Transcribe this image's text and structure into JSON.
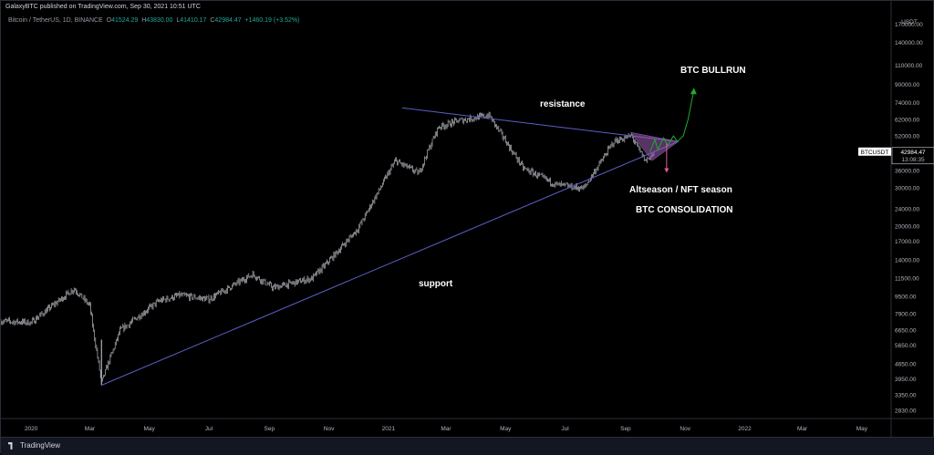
{
  "header": {
    "published": "GalaxyBTC published on TradingView.com, Sep 30, 2021 10:51 UTC",
    "symbol": "Bitcoin / TetherUS, 1D, BINANCE",
    "o_label": "O",
    "o": "41524.29",
    "h_label": "H",
    "h": "43830.00",
    "l_label": "L",
    "l": "41410.17",
    "c_label": "C",
    "c": "42984.47",
    "change": "+1460.19 (+3.52%)"
  },
  "price_axis": {
    "unit": "USDT",
    "labels": [
      "170000.00",
      "140000.00",
      "110000.00",
      "90000.00",
      "74000.00",
      "62000.00",
      "52000.00",
      "36000.00",
      "30000.00",
      "24000.00",
      "20000.00",
      "17000.00",
      "14000.00",
      "11500.00",
      "9500.00",
      "7900.00",
      "6650.00",
      "5650.00",
      "4650.00",
      "3950.00",
      "3350.00",
      "2830.00"
    ],
    "symbol_tag": "BTCUSDT",
    "last_price": "42984.47",
    "countdown": "13:08:35"
  },
  "time_axis": {
    "labels": [
      "2020",
      "Mar",
      "May",
      "Jul",
      "Sep",
      "Nov",
      "2021",
      "Mar",
      "May",
      "Jul",
      "Sep",
      "Nov",
      "2022",
      "Mar",
      "May"
    ]
  },
  "annotations": {
    "resistance": "resistance",
    "support": "support",
    "bullrun": "BTC BULLRUN",
    "altseason": "Altseason / NFT season",
    "consolidation": "BTC CONSOLIDATION"
  },
  "footer": {
    "brand": "TradingView"
  },
  "colors": {
    "background": "#000000",
    "candle": "#d1d4dc",
    "trendline": "#5b5fc7",
    "triangle_fill": "#9c5fb5",
    "bullrun_arrow": "#1faa2e",
    "down_arrow": "#e05a9a",
    "legend_value": "#26a69a"
  },
  "chart_data": {
    "type": "candlestick",
    "title": "Bitcoin / TetherUS, 1D, BINANCE",
    "scale": "log",
    "ylim": [
      2600,
      190000
    ],
    "xlim": [
      "2019-12-01",
      "2022-05-31"
    ],
    "series": [
      {
        "name": "BTCUSDT",
        "kind": "close_path_approx",
        "x": [
          "2019-12-01",
          "2020-01-01",
          "2020-02-14",
          "2020-03-01",
          "2020-03-13",
          "2020-04-01",
          "2020-05-10",
          "2020-06-01",
          "2020-07-01",
          "2020-08-15",
          "2020-09-05",
          "2020-10-15",
          "2020-11-01",
          "2020-12-01",
          "2021-01-08",
          "2021-02-01",
          "2021-02-21",
          "2021-03-13",
          "2021-04-14",
          "2021-05-19",
          "2021-06-22",
          "2021-07-20",
          "2021-08-20",
          "2021-09-07",
          "2021-09-21",
          "2021-09-30"
        ],
        "y": [
          7300,
          7200,
          10300,
          8600,
          3800,
          6600,
          9000,
          9600,
          9200,
          12000,
          10400,
          11500,
          13800,
          19500,
          40000,
          35000,
          57000,
          61000,
          64800,
          37000,
          31000,
          29800,
          49000,
          52000,
          40000,
          42984
        ]
      }
    ],
    "trendlines": [
      {
        "name": "resistance",
        "from": {
          "x": "2021-01-15",
          "y": 70000
        },
        "to": {
          "x": "2021-10-25",
          "y": 49000
        }
      },
      {
        "name": "support",
        "from": {
          "x": "2020-03-13",
          "y": 3700
        },
        "to": {
          "x": "2021-10-25",
          "y": 49000
        }
      }
    ],
    "projections": [
      {
        "name": "BTC BULLRUN",
        "direction": "up",
        "to": {
          "x": "2021-11-10",
          "y": 85000
        }
      },
      {
        "name": "Altseason / NFT season",
        "direction": "down",
        "to": {
          "x": "2021-10-13",
          "y": 36000
        }
      }
    ],
    "last": {
      "o": 41524.29,
      "h": 43830.0,
      "l": 41410.17,
      "c": 42984.47
    }
  }
}
